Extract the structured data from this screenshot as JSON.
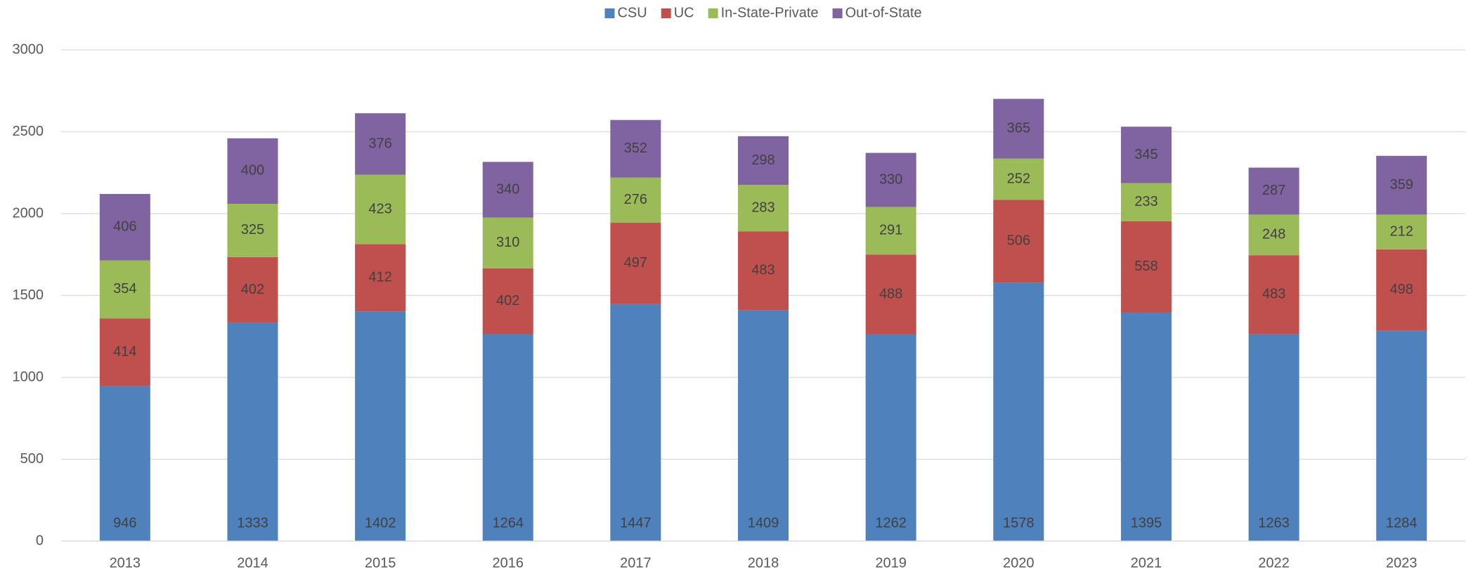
{
  "chart_data": {
    "type": "stacked_bar",
    "categories": [
      "2013",
      "2014",
      "2015",
      "2016",
      "2017",
      "2018",
      "2019",
      "2020",
      "2021",
      "2022",
      "2023"
    ],
    "series": [
      {
        "name": "CSU",
        "color": "#4f81bd",
        "values": [
          946,
          1333,
          1402,
          1264,
          1447,
          1409,
          1262,
          1578,
          1395,
          1263,
          1284
        ]
      },
      {
        "name": "UC",
        "color": "#c0504d",
        "values": [
          414,
          402,
          412,
          402,
          497,
          483,
          488,
          506,
          558,
          483,
          498
        ]
      },
      {
        "name": "In-State-Private",
        "color": "#9bbb59",
        "values": [
          354,
          325,
          423,
          310,
          276,
          283,
          291,
          252,
          233,
          248,
          212
        ]
      },
      {
        "name": "Out-of-State",
        "color": "#8064a2",
        "values": [
          406,
          400,
          376,
          340,
          352,
          298,
          330,
          365,
          345,
          287,
          359
        ]
      }
    ],
    "ylim": [
      0,
      3000
    ],
    "yticks": [
      0,
      500,
      1000,
      1500,
      2000,
      2500,
      3000
    ],
    "grid": true,
    "legend": "top"
  }
}
